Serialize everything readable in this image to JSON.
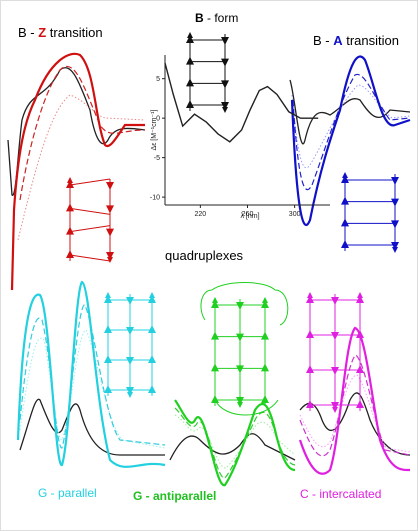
{
  "bz_title": {
    "prefix": "B - ",
    "highlight": "Z",
    "suffix": " transition"
  },
  "ba_title": {
    "prefix": "B - ",
    "highlight": "A",
    "suffix": " transition"
  },
  "b_form": {
    "title_bold": "B",
    "title_rest": " - form",
    "y_label": "Δε [M⁻¹cm⁻¹]",
    "x_label": "λ [nm]",
    "xlim": [
      190,
      330
    ],
    "ylim": [
      -11,
      8
    ],
    "xticks": [
      220,
      260,
      300
    ],
    "yticks": [
      5,
      0,
      -5,
      -10
    ],
    "x": [
      190,
      197,
      205,
      215,
      225,
      235,
      245,
      255,
      262,
      270,
      277,
      285,
      295,
      305,
      320
    ],
    "values": [
      7,
      3,
      -1,
      0.5,
      -0.5,
      -2,
      -3,
      -1.5,
      1,
      3.5,
      4,
      3,
      0.8,
      0,
      0
    ],
    "color": "#222222"
  },
  "quadruplexes": "quadruplexes",
  "g_parallel": "G - parallel",
  "g_antiparallel": "G - antiparallel",
  "c_intercalated": "C - intercalated"
}
